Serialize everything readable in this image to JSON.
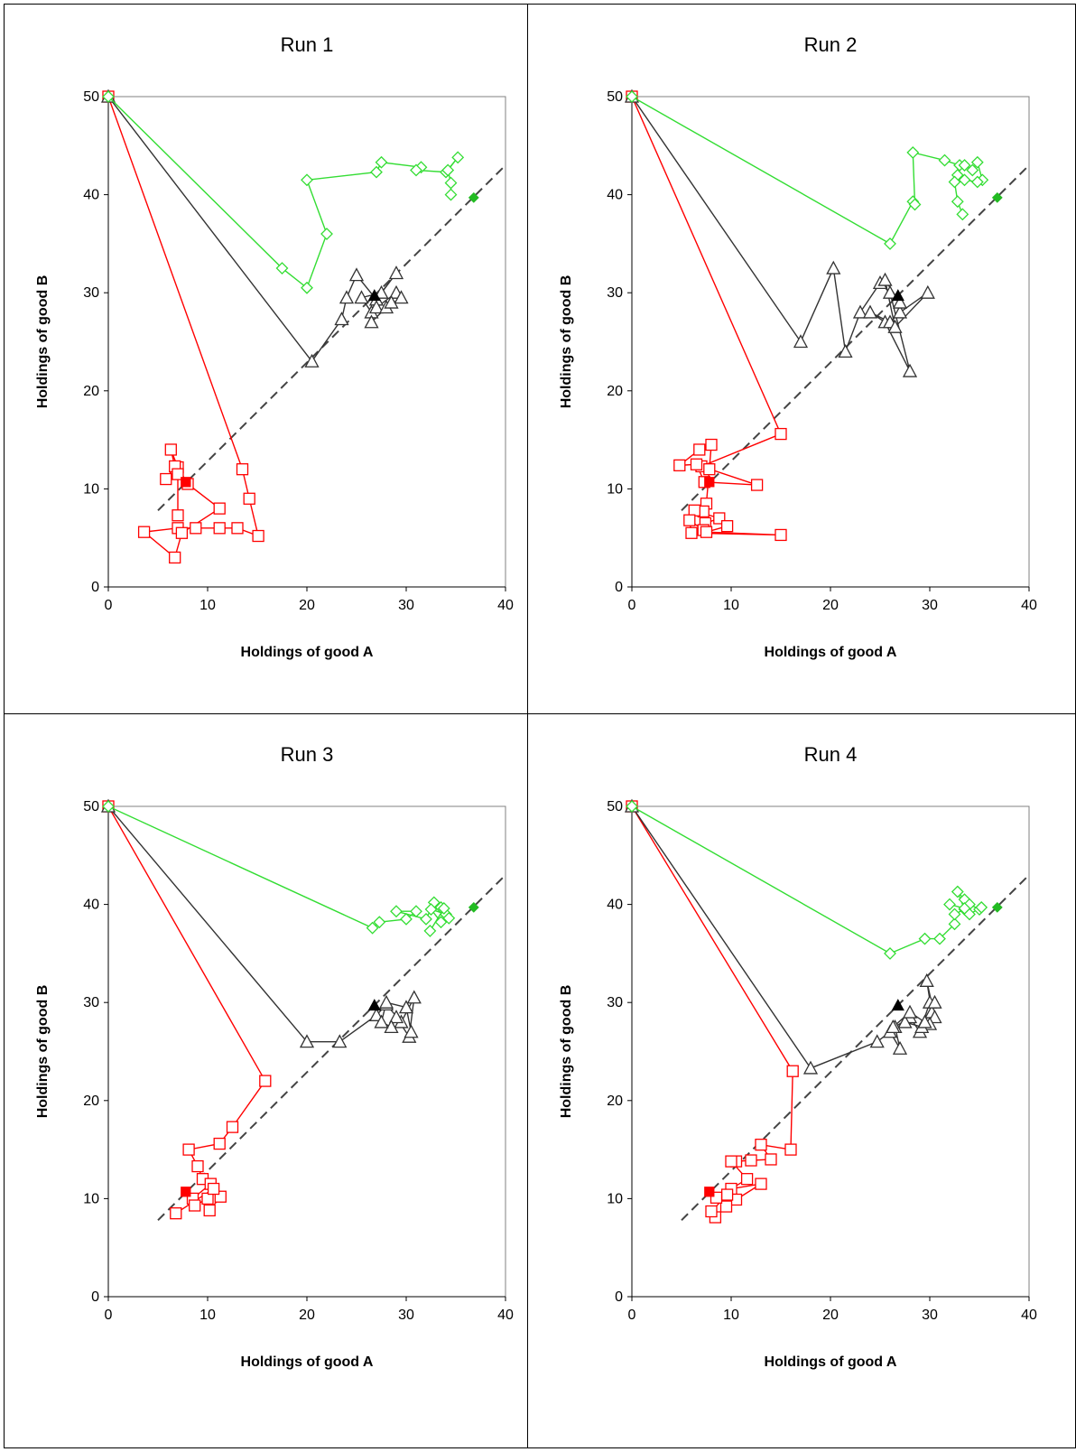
{
  "chart_data": [
    {
      "type": "scatter",
      "title": "Run 1",
      "xlabel": "Holdings of good A",
      "ylabel": "Holdings of good B",
      "xlim": [
        0,
        40
      ],
      "ylim": [
        0,
        50
      ],
      "xticks": [
        "0",
        "10",
        "20",
        "30",
        "40"
      ],
      "yticks": [
        "0",
        "10",
        "20",
        "30",
        "40",
        "50"
      ],
      "reference_line": {
        "x": [
          5,
          40
        ],
        "y": [
          7.8,
          43
        ],
        "style": "dashed"
      },
      "series": [
        {
          "color": "#ff0000",
          "marker": "square",
          "final_point": [
            7.8,
            10.7
          ],
          "points": [
            [
              0,
              50
            ],
            [
              13.5,
              12
            ],
            [
              14.2,
              9
            ],
            [
              15.1,
              5.2
            ],
            [
              13,
              6
            ],
            [
              11.2,
              6
            ],
            [
              8.8,
              6
            ],
            [
              7,
              6
            ],
            [
              3.6,
              5.6
            ],
            [
              6.7,
              3
            ],
            [
              7.4,
              5.5
            ],
            [
              11.2,
              8
            ],
            [
              8,
              10.5
            ],
            [
              7,
              12.2
            ],
            [
              6.3,
              14
            ],
            [
              6.7,
              12.3
            ],
            [
              5.8,
              11
            ],
            [
              7,
              11.5
            ],
            [
              7,
              7.3
            ]
          ]
        },
        {
          "color": "#333333",
          "marker": "triangle",
          "final_point": [
            26.8,
            29.7
          ],
          "points": [
            [
              0,
              50
            ],
            [
              20.5,
              23
            ],
            [
              23.5,
              27.3
            ],
            [
              24,
              29.5
            ],
            [
              25,
              31.8
            ],
            [
              27,
              29.3
            ],
            [
              29,
              32
            ],
            [
              27.5,
              30
            ],
            [
              25.5,
              29.5
            ],
            [
              26.5,
              28
            ],
            [
              27,
              28.5
            ],
            [
              29,
              30
            ],
            [
              29.5,
              29.5
            ],
            [
              28,
              28.5
            ],
            [
              26.5,
              27
            ],
            [
              28.5,
              29
            ]
          ]
        },
        {
          "color": "#33dd33",
          "marker": "diamond",
          "final_point": [
            36.8,
            39.7
          ],
          "points": [
            [
              0,
              50
            ],
            [
              17.5,
              32.5
            ],
            [
              20,
              30.5
            ],
            [
              22,
              36
            ],
            [
              20,
              41.5
            ],
            [
              27,
              42.3
            ],
            [
              27.5,
              43.3
            ],
            [
              31.5,
              42.8
            ],
            [
              31,
              42.5
            ],
            [
              34,
              42.3
            ],
            [
              35.2,
              43.8
            ],
            [
              34.2,
              42.5
            ],
            [
              34.5,
              41.2
            ],
            [
              34.5,
              40
            ]
          ]
        }
      ]
    },
    {
      "type": "scatter",
      "title": "Run 2",
      "xlabel": "Holdings of good A",
      "ylabel": "Holdings of good B",
      "xlim": [
        0,
        40
      ],
      "ylim": [
        0,
        50
      ],
      "xticks": [
        "0",
        "10",
        "20",
        "30",
        "40"
      ],
      "yticks": [
        "0",
        "10",
        "20",
        "30",
        "40",
        "50"
      ],
      "reference_line": {
        "x": [
          5,
          40
        ],
        "y": [
          7.8,
          43
        ],
        "style": "dashed"
      },
      "series": [
        {
          "color": "#ff0000",
          "marker": "square",
          "final_point": [
            7.8,
            10.7
          ],
          "points": [
            [
              0,
              50
            ],
            [
              15,
              15.6
            ],
            [
              7,
              12.3
            ],
            [
              12.6,
              10.4
            ],
            [
              7.3,
              10.7
            ],
            [
              6.5,
              12.5
            ],
            [
              4.8,
              12.4
            ],
            [
              6.8,
              14
            ],
            [
              8,
              14.5
            ],
            [
              7.8,
              12
            ],
            [
              7.5,
              8.5
            ],
            [
              7.2,
              7.7
            ],
            [
              6.3,
              7.8
            ],
            [
              8.8,
              7
            ],
            [
              7.4,
              6.5
            ],
            [
              7.2,
              5.8
            ],
            [
              5.8,
              6.8
            ],
            [
              6,
              5.5
            ],
            [
              15,
              5.3
            ],
            [
              7.5,
              5.6
            ],
            [
              9.6,
              6.2
            ]
          ]
        },
        {
          "color": "#333333",
          "marker": "triangle",
          "final_point": [
            26.8,
            29.7
          ],
          "points": [
            [
              0,
              50
            ],
            [
              17,
              25
            ],
            [
              20.3,
              32.5
            ],
            [
              21.5,
              24
            ],
            [
              23,
              28
            ],
            [
              25,
              31
            ],
            [
              26,
              30
            ],
            [
              28,
              22
            ],
            [
              25.5,
              27
            ],
            [
              24,
              28
            ],
            [
              26,
              27
            ],
            [
              27,
              28
            ],
            [
              29.8,
              30
            ],
            [
              26.5,
              26.5
            ],
            [
              25.5,
              31.3
            ],
            [
              27,
              29
            ]
          ]
        },
        {
          "color": "#33dd33",
          "marker": "diamond",
          "final_point": [
            36.8,
            39.7
          ],
          "points": [
            [
              0,
              50
            ],
            [
              26,
              35
            ],
            [
              28.3,
              39.3
            ],
            [
              28.5,
              39
            ],
            [
              28.3,
              44.3
            ],
            [
              31.5,
              43.5
            ],
            [
              33,
              43
            ],
            [
              33.5,
              43
            ],
            [
              34.3,
              42.5
            ],
            [
              34.8,
              43.3
            ],
            [
              35.3,
              41.5
            ],
            [
              34.8,
              41.3
            ],
            [
              33.5,
              41.5
            ],
            [
              32.8,
              42
            ],
            [
              32.5,
              41.3
            ],
            [
              32.8,
              39.3
            ],
            [
              33.3,
              38
            ]
          ]
        }
      ]
    },
    {
      "type": "scatter",
      "title": "Run 3",
      "xlabel": "Holdings of good A",
      "ylabel": "Holdings of good B",
      "xlim": [
        0,
        40
      ],
      "ylim": [
        0,
        50
      ],
      "xticks": [
        "0",
        "10",
        "20",
        "30",
        "40"
      ],
      "yticks": [
        "0",
        "10",
        "20",
        "30",
        "40",
        "50"
      ],
      "reference_line": {
        "x": [
          5,
          40
        ],
        "y": [
          7.8,
          43
        ],
        "style": "dashed"
      },
      "series": [
        {
          "color": "#ff0000",
          "marker": "square",
          "final_point": [
            7.8,
            10.7
          ],
          "points": [
            [
              0,
              50
            ],
            [
              15.8,
              22
            ],
            [
              12.5,
              17.3
            ],
            [
              11.2,
              15.6
            ],
            [
              8.1,
              15
            ],
            [
              9,
              13.3
            ],
            [
              9.5,
              12
            ],
            [
              10.3,
              11.5
            ],
            [
              8.5,
              10
            ],
            [
              8.7,
              9.3
            ],
            [
              10,
              10
            ],
            [
              10.2,
              8.8
            ],
            [
              11.3,
              10.2
            ],
            [
              10.6,
              11
            ],
            [
              6.8,
              8.5
            ]
          ]
        },
        {
          "color": "#333333",
          "marker": "triangle",
          "final_point": [
            26.8,
            29.7
          ],
          "points": [
            [
              0,
              50
            ],
            [
              20,
              26
            ],
            [
              23.3,
              26
            ],
            [
              27,
              28.7
            ],
            [
              28,
              29.8
            ],
            [
              29.5,
              28
            ],
            [
              30.8,
              30.5
            ],
            [
              30.3,
              26.5
            ],
            [
              29,
              28.5
            ],
            [
              28.5,
              27.5
            ],
            [
              27.5,
              28
            ],
            [
              28,
              30
            ],
            [
              30,
              29.5
            ],
            [
              30.5,
              27
            ]
          ]
        },
        {
          "color": "#33dd33",
          "marker": "diamond",
          "final_point": [
            36.8,
            39.7
          ],
          "points": [
            [
              0,
              50
            ],
            [
              26.6,
              37.6
            ],
            [
              27.3,
              38.2
            ],
            [
              30,
              38.5
            ],
            [
              31,
              39.3
            ],
            [
              29,
              39.3
            ],
            [
              32,
              38.5
            ],
            [
              32.8,
              40.2
            ],
            [
              33.5,
              39.7
            ],
            [
              34,
              39
            ],
            [
              32.5,
              39.5
            ],
            [
              33.5,
              38.2
            ],
            [
              34.3,
              38.6
            ],
            [
              33.8,
              39.6
            ],
            [
              32.4,
              37.3
            ]
          ]
        }
      ]
    },
    {
      "type": "scatter",
      "title": "Run 4",
      "xlabel": "Holdings of good A",
      "ylabel": "Holdings of good B",
      "xlim": [
        0,
        40
      ],
      "ylim": [
        0,
        50
      ],
      "xticks": [
        "0",
        "10",
        "20",
        "30",
        "40"
      ],
      "yticks": [
        "0",
        "10",
        "20",
        "30",
        "40",
        "50"
      ],
      "reference_line": {
        "x": [
          5,
          40
        ],
        "y": [
          7.8,
          43
        ],
        "style": "dashed"
      },
      "series": [
        {
          "color": "#ff0000",
          "marker": "square",
          "final_point": [
            7.8,
            10.7
          ],
          "points": [
            [
              0,
              50
            ],
            [
              16.2,
              23
            ],
            [
              16,
              15
            ],
            [
              13,
              15.5
            ],
            [
              14,
              14
            ],
            [
              12,
              13.9
            ],
            [
              10.5,
              13.8
            ],
            [
              10,
              13.8
            ],
            [
              11.6,
              12
            ],
            [
              10,
              11
            ],
            [
              13,
              11.5
            ],
            [
              10.5,
              9.9
            ],
            [
              9.5,
              9.2
            ],
            [
              8.4,
              8.1
            ],
            [
              8,
              8.7
            ],
            [
              9.6,
              10.4
            ],
            [
              8.5,
              10.1
            ]
          ]
        },
        {
          "color": "#333333",
          "marker": "triangle",
          "final_point": [
            26.8,
            29.7
          ],
          "points": [
            [
              0,
              50
            ],
            [
              18,
              23.3
            ],
            [
              24.7,
              26
            ],
            [
              26,
              27
            ],
            [
              27,
              25.3
            ],
            [
              26.5,
              27.5
            ],
            [
              28,
              28.5
            ],
            [
              29,
              27
            ],
            [
              30,
              30
            ],
            [
              30.2,
              29
            ],
            [
              29.7,
              32.2
            ],
            [
              30.5,
              28.5
            ],
            [
              30,
              27.8
            ],
            [
              29.2,
              27.5
            ],
            [
              27.5,
              28
            ],
            [
              26.3,
              27.5
            ],
            [
              28,
              29
            ],
            [
              29.5,
              28
            ],
            [
              30.5,
              30
            ]
          ]
        },
        {
          "color": "#33dd33",
          "marker": "diamond",
          "final_point": [
            36.8,
            39.7
          ],
          "points": [
            [
              0,
              50
            ],
            [
              26,
              35
            ],
            [
              29.5,
              36.5
            ],
            [
              31,
              36.5
            ],
            [
              32.5,
              38
            ],
            [
              32.5,
              39
            ],
            [
              33.5,
              39.5
            ],
            [
              32.8,
              41.3
            ],
            [
              33.5,
              40.5
            ],
            [
              34,
              40
            ],
            [
              35,
              39.5
            ],
            [
              35.2,
              39.7
            ],
            [
              34,
              39
            ],
            [
              33.5,
              39.6
            ],
            [
              32,
              40
            ]
          ]
        }
      ]
    }
  ]
}
